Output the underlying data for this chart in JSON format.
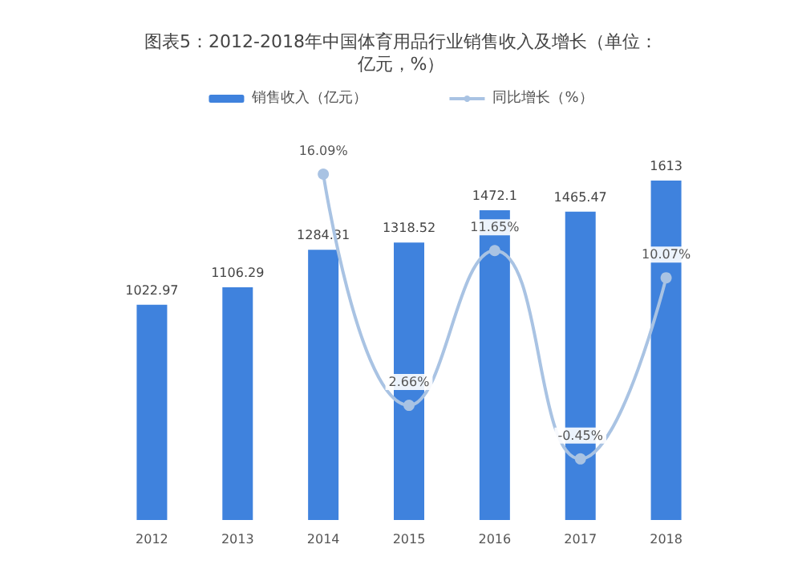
{
  "chart_data": {
    "type": "bar",
    "title": "图表5：2012-2018年中国体育用品行业销售收入及增长（单位：亿元，%）",
    "categories": [
      "2012",
      "2013",
      "2014",
      "2015",
      "2016",
      "2017",
      "2018"
    ],
    "series": [
      {
        "name": "销售收入（亿元）",
        "color": "#3f82dd",
        "values": [
          1022.97,
          1106.29,
          1284.31,
          1318.52,
          1472.1,
          1465.47,
          1613
        ]
      },
      {
        "name": "同比增长（%）",
        "type": "line",
        "axis": "y2",
        "color": "#a9c3e3",
        "values": [
          null,
          null,
          16.09,
          2.66,
          11.65,
          -0.45,
          10.07
        ],
        "value_labels": [
          null,
          null,
          "16.09%",
          "2.66%",
          "11.65%",
          "-0.45%",
          "10.07%"
        ]
      }
    ],
    "data_labels": true,
    "legend": "top",
    "marker": "circle",
    "grid": false,
    "tick_labels": "x"
  }
}
